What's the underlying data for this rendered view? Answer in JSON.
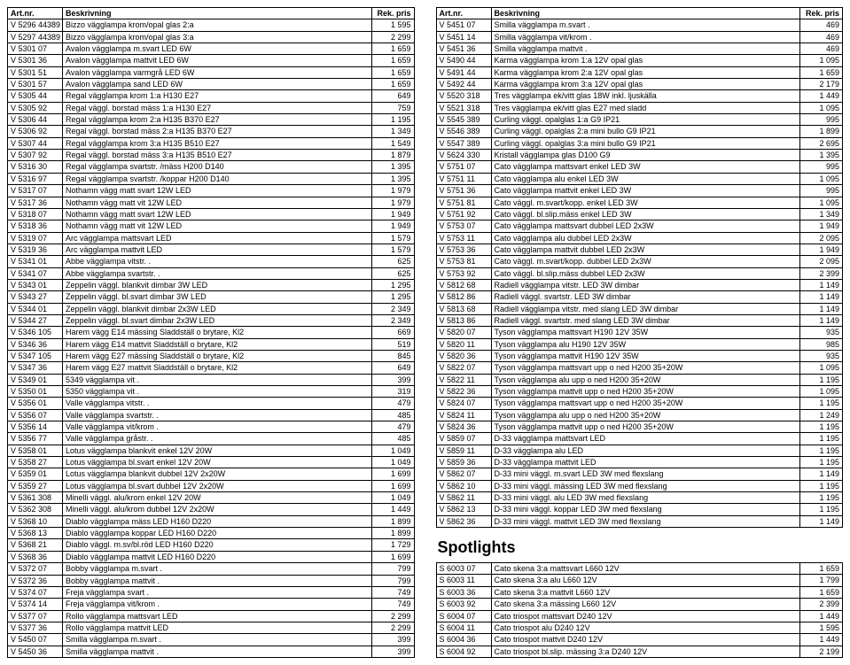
{
  "headers": {
    "art": "Art.nr.",
    "desc": "Beskrivning",
    "price": "Rek. pris"
  },
  "spotlights_title": "Spotlights",
  "left": [
    [
      "V 5296 44389",
      "Bizzo vägglampa krom/opal glas 2:a",
      "1 595"
    ],
    [
      "V 5297 44389",
      "Bizzo vägglampa krom/opal glas 3:a",
      "2 299"
    ],
    [
      "V 5301 07",
      "Avalon vägglampa m.svart LED 6W",
      "1 659"
    ],
    [
      "V 5301 36",
      "Avalon vägglampa mattvit LED 6W",
      "1 659"
    ],
    [
      "V 5301 51",
      "Avalon vägglampa varmgrå LED 6W",
      "1 659"
    ],
    [
      "V 5301 57",
      "Avalon vägglampa sand LED 6W",
      "1 659"
    ],
    [
      "V 5305 44",
      "Regal vägglampa krom 1:a H130 E27",
      "649"
    ],
    [
      "V 5305 92",
      "Regal väggl. borstad mäss 1:a H130 E27",
      "759"
    ],
    [
      "V 5306 44",
      "Regal vägglampa krom 2:a H135 B370 E27",
      "1 195"
    ],
    [
      "V 5306 92",
      "Regal väggl. borstad mäss 2:a H135 B370 E27",
      "1 349"
    ],
    [
      "V 5307 44",
      "Regal vägglampa krom 3:a H135 B510 E27",
      "1 549"
    ],
    [
      "V 5307 92",
      "Regal väggl. borstad mäss 3:a H135 B510 E27",
      "1 879"
    ],
    [
      "V 5316 30",
      "Regal vägglampa svartstr. /mäss H200 D140",
      "1 395"
    ],
    [
      "V 5316 97",
      "Regal vägglampa svartstr. /koppar H200 D140",
      "1 395"
    ],
    [
      "V 5317 07",
      "Nothamn vägg matt svart 12W LED",
      "1 979"
    ],
    [
      "V 5317 36",
      "Nothamn vägg matt vit 12W LED",
      "1 979"
    ],
    [
      "V 5318 07",
      "Nothamn vägg matt svart 12W LED",
      "1 949"
    ],
    [
      "V 5318 36",
      "Nothamn vägg matt vit 12W LED",
      "1 949"
    ],
    [
      "V 5319 07",
      "Arc vägglampa mattsvart LED",
      "1 579"
    ],
    [
      "V 5319 36",
      "Arc vägglampa mattvit LED",
      "1 579"
    ],
    [
      "V 5341 01",
      "Abbe vägglampa vitstr. .",
      "625"
    ],
    [
      "V 5341 07",
      "Abbe vägglampa svartstr. .",
      "625"
    ],
    [
      "V 5343 01",
      "Zeppelin väggl. blankvit dimbar 3W LED",
      "1 295"
    ],
    [
      "V 5343 27",
      "Zeppelin väggl. bl.svart dimbar 3W LED",
      "1 295"
    ],
    [
      "V 5344 01",
      "Zeppelin väggl. blankvit dimbar 2x3W LED",
      "2 349"
    ],
    [
      "V 5344 27",
      "Zeppelin väggl. bl.svart dimbar 2x3W LED",
      "2 349"
    ],
    [
      "V 5346 105",
      "Harem vägg E14 mässing Sladdställ o brytare, Kl2",
      "669"
    ],
    [
      "V 5346 36",
      "Harem vägg E14 mattvit Sladdställ o brytare, Kl2",
      "519"
    ],
    [
      "V 5347 105",
      "Harem vägg E27 mässing Sladdställ o brytare, Kl2",
      "845"
    ],
    [
      "V 5347 36",
      "Harem vägg E27 mattvit Sladdställ o brytare, Kl2",
      "649"
    ],
    [
      "V 5349 01",
      "5349 vägglampa vit .",
      "399"
    ],
    [
      "V 5350 01",
      "5350 vägglampa vit .",
      "319"
    ],
    [
      "V 5356 01",
      "Valle vägglampa vitstr. .",
      "479"
    ],
    [
      "V 5356 07",
      "Valle vägglampa svartstr. .",
      "485"
    ],
    [
      "V 5356 14",
      "Valle vägglampa vit/krom .",
      "479"
    ],
    [
      "V 5356 77",
      "Valle vägglampa gråstr. .",
      "485"
    ],
    [
      "V 5358 01",
      "Lotus vägglampa blankvit enkel 12V 20W",
      "1 049"
    ],
    [
      "V 5358 27",
      "Lotus vägglampa bl.svart enkel 12V 20W",
      "1 049"
    ],
    [
      "V 5359 01",
      "Lotus vägglampa blankvit dubbel 12V 2x20W",
      "1 699"
    ],
    [
      "V 5359 27",
      "Lotus vägglampa bl.svart dubbel 12V 2x20W",
      "1 699"
    ],
    [
      "V 5361 308",
      "Minelli väggl. alu/krom enkel 12V 20W",
      "1 049"
    ],
    [
      "V 5362 308",
      "Minelli väggl. alu/krom dubbel 12V 2x20W",
      "1 449"
    ],
    [
      "V 5368 10",
      "Diablo vägglampa mäss LED H160 D220",
      "1 899"
    ],
    [
      "V 5368 13",
      "Diablo vägglampa koppar LED H160 D220",
      "1 899"
    ],
    [
      "V 5368 21",
      "Diablo väggl. m.sv/bl.röd LED H160 D220",
      "1 729"
    ],
    [
      "V 5368 36",
      "Diablo vägglampa mattvit LED H160 D220",
      "1 699"
    ],
    [
      "V 5372 07",
      "Bobby vägglampa m.svart .",
      "799"
    ],
    [
      "V 5372 36",
      "Bobby vägglampa mattvit .",
      "799"
    ],
    [
      "V 5374 07",
      "Freja vägglampa svart .",
      "749"
    ],
    [
      "V 5374 14",
      "Freja vägglampa vit/krom .",
      "749"
    ],
    [
      "V 5377 07",
      "Rollo vägglampa mattsvart LED",
      "2 299"
    ],
    [
      "V 5377 36",
      "Rollo vägglampa mattvit LED",
      "2 299"
    ],
    [
      "V 5450 07",
      "Smilla vägglampa m.svart .",
      "399"
    ],
    [
      "V 5450 36",
      "Smilla vägglampa mattvit .",
      "399"
    ]
  ],
  "right": [
    [
      "V 5451 07",
      "Smilla vägglampa m.svart .",
      "469"
    ],
    [
      "V 5451 14",
      "Smilla vägglampa vit/krom .",
      "469"
    ],
    [
      "V 5451 36",
      "Smilla vägglampa mattvit .",
      "469"
    ],
    [
      "V 5490 44",
      "Karma vägglampa krom 1:a 12V opal glas",
      "1 095"
    ],
    [
      "V 5491 44",
      "Karma vägglampa krom 2:a 12V opal glas",
      "1 659"
    ],
    [
      "V 5492 44",
      "Karma vägglampa krom 3:a 12V opal glas",
      "2 179"
    ],
    [
      "V 5520 318",
      "Tres vägglampa ek/vitt glas 18W inkl. ljuskälla",
      "1 449"
    ],
    [
      "V 5521 318",
      "Tres vägglampa ek/vitt glas E27 med sladd",
      "1 095"
    ],
    [
      "V 5545 389",
      "Curling väggl. opalglas 1:a G9 IP21",
      "995"
    ],
    [
      "V 5546 389",
      "Curling väggl. opalglas 2:a mini bullo G9 IP21",
      "1 899"
    ],
    [
      "V 5547 389",
      "Curling väggl. opalglas 3:a mini bullo G9 IP21",
      "2 695"
    ],
    [
      "V 5624 330",
      "Kristall vägglampa glas D100 G9",
      "1 395"
    ],
    [
      "V 5751 07",
      "Cato vägglampa mattsvart enkel LED 3W",
      "995"
    ],
    [
      "V 5751 11",
      "Cato vägglampa alu enkel LED 3W",
      "1 095"
    ],
    [
      "V 5751 36",
      "Cato vägglampa mattvit enkel LED 3W",
      "995"
    ],
    [
      "V 5751 81",
      "Cato väggl. m.svart/kopp. enkel LED 3W",
      "1 095"
    ],
    [
      "V 5751 92",
      "Cato väggl. bl.slip.mäss enkel LED 3W",
      "1 349"
    ],
    [
      "V 5753 07",
      "Cato vägglampa mattsvart dubbel LED 2x3W",
      "1 949"
    ],
    [
      "V 5753 11",
      "Cato vägglampa alu dubbel LED 2x3W",
      "2 095"
    ],
    [
      "V 5753 36",
      "Cato vägglampa mattvit dubbel LED 2x3W",
      "1 949"
    ],
    [
      "V 5753 81",
      "Cato väggl. m.svart/kopp. dubbel LED 2x3W",
      "2 095"
    ],
    [
      "V 5753 92",
      "Cato väggl. bl.slip.mäss dubbel LED 2x3W",
      "2 399"
    ],
    [
      "V 5812 68",
      "Radiell vägglampa vitstr. LED 3W dimbar",
      "1 149"
    ],
    [
      "V 5812 86",
      "Radiell väggl. svartstr. LED 3W dimbar",
      "1 149"
    ],
    [
      "V 5813 68",
      "Radiell vägglampa vitstr. med slang LED 3W dimbar",
      "1 149"
    ],
    [
      "V 5813 86",
      "Radiell väggl. svartstr. med slang LED 3W dimbar",
      "1 149"
    ],
    [
      "V 5820 07",
      "Tyson vägglampa mattsvart H190 12V 35W",
      "935"
    ],
    [
      "V 5820 11",
      "Tyson vägglampa alu H190 12V 35W",
      "985"
    ],
    [
      "V 5820 36",
      "Tyson vägglampa mattvit H190 12V 35W",
      "935"
    ],
    [
      "V 5822 07",
      "Tyson vägglampa mattsvart upp o ned H200 35+20W",
      "1 095"
    ],
    [
      "V 5822 11",
      "Tyson vägglampa alu upp o ned H200 35+20W",
      "1 195"
    ],
    [
      "V 5822 36",
      "Tyson vägglampa mattvit upp o ned H200 35+20W",
      "1 095"
    ],
    [
      "V 5824 07",
      "Tyson vägglampa mattsvart upp o ned H200 35+20W",
      "1 195"
    ],
    [
      "V 5824 11",
      "Tyson vägglampa alu upp o ned H200 35+20W",
      "1 249"
    ],
    [
      "V 5824 36",
      "Tyson vägglampa mattvit upp o ned H200 35+20W",
      "1 195"
    ],
    [
      "V 5859 07",
      "D-33 vägglampa mattsvart LED",
      "1 195"
    ],
    [
      "V 5859 11",
      "D-33 vägglampa alu LED",
      "1 195"
    ],
    [
      "V 5859 36",
      "D-33 vägglampa mattvit LED",
      "1 195"
    ],
    [
      "V 5862 07",
      "D-33 mini väggl. m.svart LED 3W med flexslang",
      "1 149"
    ],
    [
      "V 5862 10",
      "D-33 mini väggl. mässing LED 3W med flexslang",
      "1 195"
    ],
    [
      "V 5862 11",
      "D-33 mini väggl. alu LED 3W med flexslang",
      "1 195"
    ],
    [
      "V 5862 13",
      "D-33 mini väggl. koppar LED 3W med flexslang",
      "1 195"
    ],
    [
      "V 5862 36",
      "D-33 mini väggl. mattvit LED 3W med flexslang",
      "1 149"
    ]
  ],
  "spotlights": [
    [
      "S 6003 07",
      "Cato skena 3:a mattsvart L660 12V",
      "1 659"
    ],
    [
      "S 6003 11",
      "Cato skena 3:a alu L660 12V",
      "1 799"
    ],
    [
      "S 6003 36",
      "Cato skena 3:a mattvit L660 12V",
      "1 659"
    ],
    [
      "S 6003 92",
      "Cato skena 3:a mässing L660 12V",
      "2 399"
    ],
    [
      "S 6004 07",
      "Cato triospot mattsvart D240 12V",
      "1 449"
    ],
    [
      "S 6004 11",
      "Cato triospot alu D240 12V",
      "1 595"
    ],
    [
      "S 6004 36",
      "Cato triospot mattvit D240 12V",
      "1 449"
    ],
    [
      "S 6004 92",
      "Cato triospot bl.slip. mässing 3:a D240 12V",
      "2 199"
    ]
  ]
}
